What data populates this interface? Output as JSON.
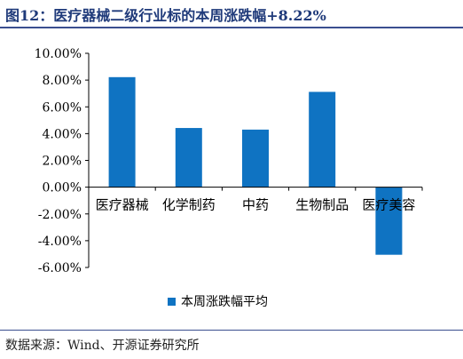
{
  "header": {
    "title": "图12：医疗器械二级行业标的本周涨跌幅+8.22%"
  },
  "footer": {
    "source": "数据来源：Wind、开源证券研究所"
  },
  "colors": {
    "bar": "#0f73c2",
    "axis": "#000000",
    "text": "#000000"
  },
  "chart_data": {
    "type": "bar",
    "categories": [
      "医疗器械",
      "化学制药",
      "中药",
      "生物制品",
      "医疗美容"
    ],
    "series": [
      {
        "name": "本周涨跌幅平均",
        "values": [
          8.22,
          4.42,
          4.3,
          7.12,
          -5.05
        ]
      }
    ],
    "ylim": [
      -6,
      10
    ],
    "yticks": [
      10,
      8,
      6,
      4,
      2,
      0,
      -2,
      -4,
      -6
    ],
    "ytick_labels": [
      "10.00%",
      "8.00%",
      "6.00%",
      "4.00%",
      "2.00%",
      "0.00%",
      "-2.00%",
      "-4.00%",
      "-6.00%"
    ],
    "legend_position": "bottom",
    "grid": false
  }
}
